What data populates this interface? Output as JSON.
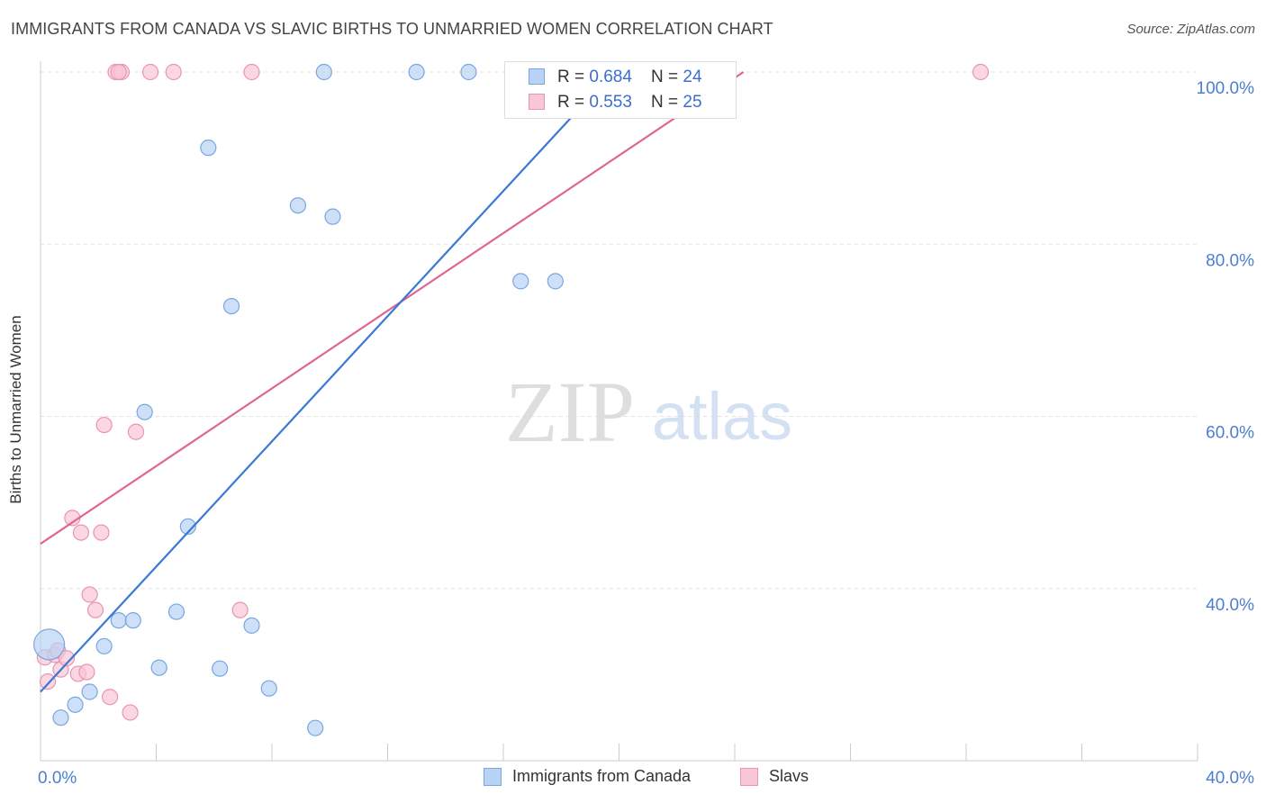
{
  "title": "IMMIGRANTS FROM CANADA VS SLAVIC BIRTHS TO UNMARRIED WOMEN CORRELATION CHART",
  "source": "Source: ZipAtlas.com",
  "watermark": {
    "zip": "ZIP",
    "atlas": "atlas"
  },
  "legend_stats": [
    {
      "r_label": "R = ",
      "r_value": "0.684",
      "n_label": "N = ",
      "n_value": "24"
    },
    {
      "r_label": "R = ",
      "r_value": "0.553",
      "n_label": "N = ",
      "n_value": "25"
    }
  ],
  "colors": {
    "blue_fill": "#b8d3f5",
    "blue_stroke": "#7aa6e0",
    "blue_line": "#3a78d4",
    "pink_fill": "#f8c6d6",
    "pink_stroke": "#e994b2",
    "pink_line": "#e0668f",
    "axis_text": "#4a7fd0",
    "grid": "#e3e3e3"
  },
  "chart_data": {
    "type": "scatter",
    "title": "IMMIGRANTS FROM CANADA VS SLAVIC BIRTHS TO UNMARRIED WOMEN CORRELATION CHART",
    "xlabel": "",
    "ylabel": "Births to Unmarried Women",
    "xlim": [
      0,
      40
    ],
    "ylim": [
      20,
      100
    ],
    "x_tick_labels": [
      "0.0%",
      "40.0%"
    ],
    "y_ticks": [
      40,
      60,
      80,
      100
    ],
    "y_tick_labels": [
      "40.0%",
      "60.0%",
      "80.0%",
      "100.0%"
    ],
    "series": [
      {
        "name": "Immigrants from Canada",
        "color": "blue",
        "r": 0.684,
        "n": 24,
        "points": [
          {
            "x": 0.3,
            "y": 33.5,
            "big": true
          },
          {
            "x": 0.7,
            "y": 25.0
          },
          {
            "x": 1.2,
            "y": 26.5
          },
          {
            "x": 1.7,
            "y": 28.0
          },
          {
            "x": 2.2,
            "y": 33.3
          },
          {
            "x": 2.7,
            "y": 36.3
          },
          {
            "x": 3.2,
            "y": 36.3
          },
          {
            "x": 4.1,
            "y": 30.8
          },
          {
            "x": 4.7,
            "y": 37.3
          },
          {
            "x": 5.1,
            "y": 47.2
          },
          {
            "x": 3.6,
            "y": 60.5
          },
          {
            "x": 5.8,
            "y": 91.2
          },
          {
            "x": 6.2,
            "y": 30.7
          },
          {
            "x": 6.6,
            "y": 72.8
          },
          {
            "x": 7.3,
            "y": 35.7
          },
          {
            "x": 7.9,
            "y": 28.4
          },
          {
            "x": 8.9,
            "y": 84.5
          },
          {
            "x": 9.5,
            "y": 23.8
          },
          {
            "x": 9.8,
            "y": 100.0
          },
          {
            "x": 10.1,
            "y": 83.2
          },
          {
            "x": 13.0,
            "y": 100.0
          },
          {
            "x": 14.8,
            "y": 100.0
          },
          {
            "x": 16.6,
            "y": 75.7
          },
          {
            "x": 17.8,
            "y": 75.7
          }
        ],
        "trend": {
          "x1": 0.0,
          "y1": 28.0,
          "x2": 19.8,
          "y2": 100.0
        }
      },
      {
        "name": "Slavs",
        "color": "pink",
        "r": 0.553,
        "n": 25,
        "points": [
          {
            "x": 0.15,
            "y": 32.0
          },
          {
            "x": 0.25,
            "y": 29.2
          },
          {
            "x": 0.5,
            "y": 32.3
          },
          {
            "x": 0.6,
            "y": 32.8
          },
          {
            "x": 0.7,
            "y": 30.6
          },
          {
            "x": 0.9,
            "y": 31.9
          },
          {
            "x": 1.1,
            "y": 48.2
          },
          {
            "x": 1.3,
            "y": 30.1
          },
          {
            "x": 1.4,
            "y": 46.5
          },
          {
            "x": 1.6,
            "y": 30.3
          },
          {
            "x": 1.7,
            "y": 39.3
          },
          {
            "x": 1.9,
            "y": 37.5
          },
          {
            "x": 2.1,
            "y": 46.5
          },
          {
            "x": 2.2,
            "y": 59.0
          },
          {
            "x": 2.4,
            "y": 27.4
          },
          {
            "x": 2.6,
            "y": 100.0
          },
          {
            "x": 2.8,
            "y": 100.0
          },
          {
            "x": 3.1,
            "y": 25.6
          },
          {
            "x": 3.3,
            "y": 58.2
          },
          {
            "x": 3.8,
            "y": 100.0
          },
          {
            "x": 4.6,
            "y": 100.0
          },
          {
            "x": 6.9,
            "y": 37.5
          },
          {
            "x": 7.3,
            "y": 100.0
          },
          {
            "x": 32.5,
            "y": 100.0
          },
          {
            "x": 2.7,
            "y": 100.0
          }
        ],
        "trend": {
          "x1": 0.0,
          "y1": 45.2,
          "x2": 24.3,
          "y2": 100.0
        }
      }
    ]
  }
}
